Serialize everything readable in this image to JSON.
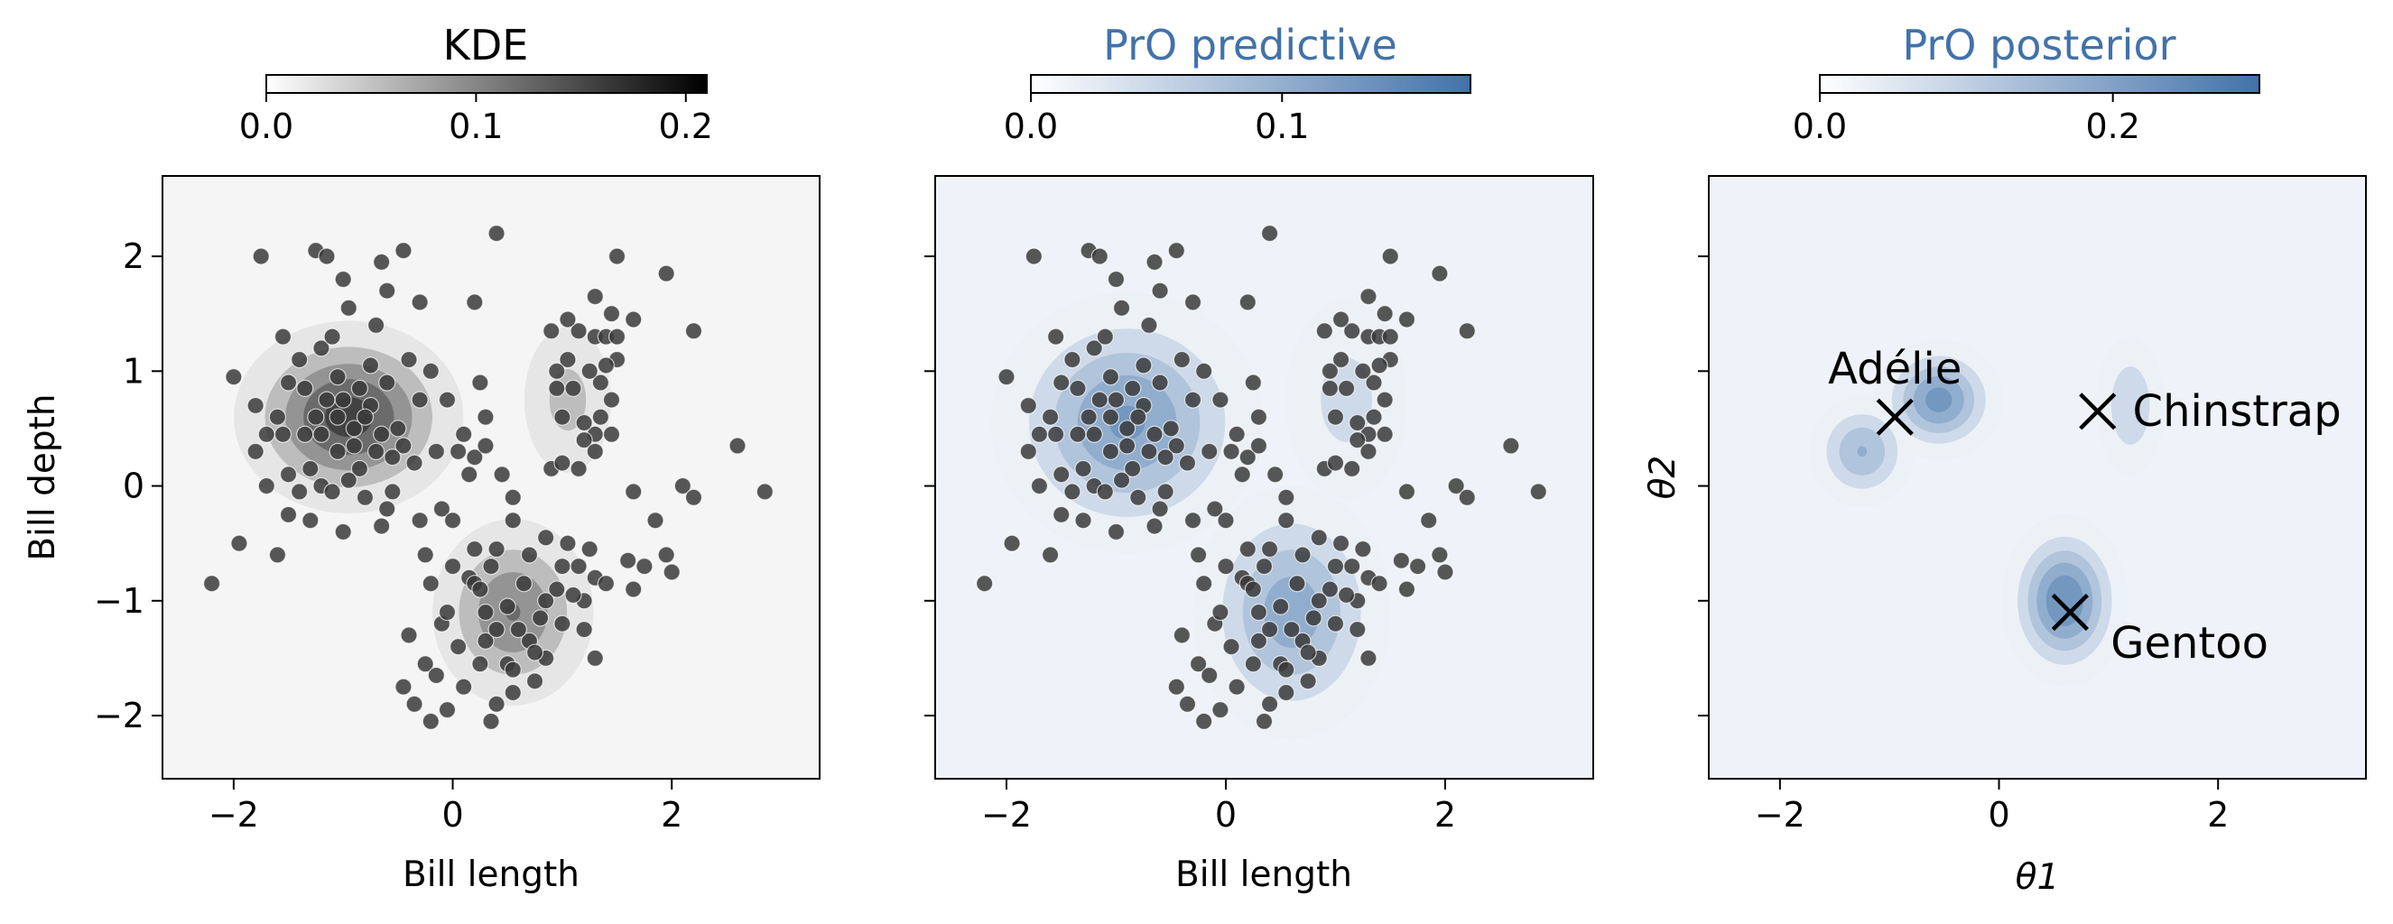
{
  "chart_data": [
    {
      "type": "scatter",
      "panel": "kde",
      "title": "KDE",
      "title_color": "#000000",
      "colormap": [
        "#ffffff",
        "#000000"
      ],
      "background": "#f5f5f5",
      "xlabel": "Bill length",
      "ylabel": "Bill depth",
      "xlim": [
        -2.65,
        3.35
      ],
      "ylim": [
        -2.55,
        2.7
      ],
      "xticks": [
        -2,
        0,
        2
      ],
      "xtick_labels": [
        "−2",
        "0",
        "2"
      ],
      "yticks": [
        -2,
        -1,
        0,
        1,
        2
      ],
      "ytick_labels": [
        "−2",
        "−1",
        "0",
        "1",
        "2"
      ],
      "colorbar": {
        "min": 0.0,
        "max": 0.21,
        "ticks": [
          0.0,
          0.1,
          0.2
        ],
        "tick_labels": [
          "0.0",
          "0.1",
          "0.2"
        ]
      },
      "shows_points": true,
      "density_modes": [
        {
          "x": -0.95,
          "y": 0.6,
          "sx": 0.5,
          "sy": 0.4,
          "w": 0.9
        },
        {
          "x": 0.55,
          "y": -1.1,
          "sx": 0.38,
          "sy": 0.42,
          "w": 0.65
        },
        {
          "x": 1.05,
          "y": 0.75,
          "sx": 0.25,
          "sy": 0.4,
          "w": 0.35
        }
      ]
    },
    {
      "type": "scatter",
      "panel": "predictive",
      "title": "PrO predictive",
      "title_color": "#4272a9",
      "colormap": [
        "#ffffff",
        "#4272a9"
      ],
      "background": "#eff3f9",
      "xlabel": "Bill length",
      "ylabel": "",
      "xlim": [
        -2.65,
        3.35
      ],
      "ylim": [
        -2.55,
        2.7
      ],
      "xticks": [
        -2,
        0,
        2
      ],
      "xtick_labels": [
        "−2",
        "0",
        "2"
      ],
      "yticks": [
        -2,
        -1,
        0,
        1,
        2
      ],
      "ytick_labels": [],
      "colorbar": {
        "min": 0.0,
        "max": 0.175,
        "ticks": [
          0.0,
          0.1
        ],
        "tick_labels": [
          "0.0",
          "0.1"
        ]
      },
      "shows_points": true,
      "density_modes": [
        {
          "x": -0.9,
          "y": 0.55,
          "sx": 0.6,
          "sy": 0.55,
          "w": 0.85
        },
        {
          "x": 0.6,
          "y": -1.1,
          "sx": 0.45,
          "sy": 0.55,
          "w": 0.75
        },
        {
          "x": 1.1,
          "y": 0.75,
          "sx": 0.35,
          "sy": 0.55,
          "w": 0.35
        }
      ]
    },
    {
      "type": "heatmap",
      "panel": "posterior",
      "title": "PrO posterior",
      "title_color": "#4272a9",
      "colormap": [
        "#ffffff",
        "#4272a9"
      ],
      "background": "#eff3f9",
      "xlabel": "θ1",
      "ylabel": "θ2",
      "xlim": [
        -2.65,
        3.35
      ],
      "ylim": [
        -2.55,
        2.7
      ],
      "xticks": [
        -2,
        0,
        2
      ],
      "xtick_labels": [
        "−2",
        "0",
        "2"
      ],
      "yticks": [
        -2,
        -1,
        0,
        1,
        2
      ],
      "ytick_labels": [],
      "colorbar": {
        "min": 0.0,
        "max": 0.3,
        "ticks": [
          0.0,
          0.2
        ],
        "tick_labels": [
          "0.0",
          "0.2"
        ]
      },
      "shows_points": false,
      "density_modes": [
        {
          "x": -0.55,
          "y": 0.75,
          "sx": 0.28,
          "sy": 0.25,
          "w": 0.9
        },
        {
          "x": -1.25,
          "y": 0.3,
          "sx": 0.25,
          "sy": 0.25,
          "w": 0.65
        },
        {
          "x": 0.6,
          "y": -1.0,
          "sx": 0.27,
          "sy": 0.35,
          "w": 1.0
        },
        {
          "x": 1.2,
          "y": 0.7,
          "sx": 0.18,
          "sy": 0.35,
          "w": 0.45
        }
      ],
      "annotations": [
        {
          "label": "Adélie",
          "x": -0.95,
          "y": 0.6,
          "label_x": -0.95,
          "label_y": 1.02,
          "anchor": "middle"
        },
        {
          "label": "Chinstrap",
          "x": 0.9,
          "y": 0.65,
          "label_x": 1.22,
          "label_y": 0.65,
          "anchor": "start"
        },
        {
          "label": "Gentoo",
          "x": 0.65,
          "y": -1.1,
          "label_x": 1.02,
          "label_y": -1.37,
          "anchor": "start"
        }
      ]
    }
  ],
  "points": [
    [
      -1.75,
      2.0
    ],
    [
      -1.25,
      2.05
    ],
    [
      -1.15,
      2.0
    ],
    [
      -1.0,
      1.8
    ],
    [
      -0.65,
      1.95
    ],
    [
      -0.45,
      2.05
    ],
    [
      0.4,
      2.2
    ],
    [
      -0.6,
      1.7
    ],
    [
      -0.3,
      1.6
    ],
    [
      -0.7,
      1.4
    ],
    [
      -1.4,
      1.1
    ],
    [
      -1.2,
      1.2
    ],
    [
      -1.8,
      0.7
    ],
    [
      -2.0,
      0.95
    ],
    [
      -1.5,
      0.9
    ],
    [
      -1.55,
      1.3
    ],
    [
      -1.1,
      1.3
    ],
    [
      -0.95,
      1.55
    ],
    [
      -0.4,
      1.1
    ],
    [
      -0.2,
      1.0
    ],
    [
      -0.05,
      0.75
    ],
    [
      0.25,
      0.9
    ],
    [
      0.3,
      0.6
    ],
    [
      0.1,
      0.45
    ],
    [
      0.2,
      1.6
    ],
    [
      0.05,
      0.3
    ],
    [
      -0.1,
      -0.2
    ],
    [
      -0.3,
      -0.3
    ],
    [
      -1.8,
      0.3
    ],
    [
      -1.7,
      0.0
    ],
    [
      -1.5,
      -0.25
    ],
    [
      -1.6,
      -0.6
    ],
    [
      -1.3,
      -0.3
    ],
    [
      -1.2,
      0.0
    ],
    [
      -0.8,
      -0.1
    ],
    [
      -0.55,
      -0.05
    ],
    [
      -0.65,
      -0.35
    ],
    [
      -1.0,
      -0.4
    ],
    [
      -1.95,
      -0.5
    ],
    [
      -2.2,
      -0.85
    ],
    [
      -0.5,
      0.5
    ],
    [
      -0.35,
      0.2
    ],
    [
      -0.3,
      0.75
    ],
    [
      -0.75,
      1.05
    ],
    [
      -1.05,
      0.95
    ],
    [
      -1.25,
      0.6
    ],
    [
      -1.05,
      0.3
    ],
    [
      -0.85,
      0.15
    ],
    [
      -1.6,
      0.6
    ],
    [
      -1.55,
      0.45
    ],
    [
      -1.1,
      -0.05
    ],
    [
      -1.3,
      0.15
    ],
    [
      -0.6,
      0.9
    ],
    [
      -0.45,
      0.35
    ],
    [
      0.2,
      0.25
    ],
    [
      0.15,
      0.1
    ],
    [
      0.3,
      0.35
    ],
    [
      0.45,
      0.1
    ],
    [
      0.55,
      -0.1
    ],
    [
      0.55,
      -0.3
    ],
    [
      0.4,
      -0.55
    ],
    [
      0.2,
      -0.55
    ],
    [
      0.15,
      -0.8
    ],
    [
      0.0,
      -0.7
    ],
    [
      -0.2,
      -0.85
    ],
    [
      -0.4,
      -1.3
    ],
    [
      -0.1,
      -1.2
    ],
    [
      -0.25,
      -1.55
    ],
    [
      -0.45,
      -1.75
    ],
    [
      -0.35,
      -1.9
    ],
    [
      -0.15,
      -1.65
    ],
    [
      -0.2,
      -2.05
    ],
    [
      -0.05,
      -1.95
    ],
    [
      0.1,
      -1.75
    ],
    [
      0.25,
      -1.55
    ],
    [
      0.4,
      -1.9
    ],
    [
      0.35,
      -2.05
    ],
    [
      0.55,
      -1.8
    ],
    [
      0.75,
      -1.7
    ],
    [
      0.85,
      -1.5
    ],
    [
      0.7,
      -1.35
    ],
    [
      0.5,
      -1.55
    ],
    [
      0.3,
      -1.35
    ],
    [
      0.05,
      -1.4
    ],
    [
      -0.05,
      -1.1
    ],
    [
      0.3,
      -1.1
    ],
    [
      0.5,
      -1.05
    ],
    [
      0.2,
      -0.85
    ],
    [
      0.65,
      -0.85
    ],
    [
      0.8,
      -1.15
    ],
    [
      1.0,
      -1.2
    ],
    [
      1.2,
      -1.0
    ],
    [
      1.3,
      -0.8
    ],
    [
      1.15,
      -0.7
    ],
    [
      1.05,
      -0.5
    ],
    [
      0.85,
      -0.45
    ],
    [
      0.7,
      -0.6
    ],
    [
      1.25,
      -0.55
    ],
    [
      1.4,
      -0.85
    ],
    [
      1.6,
      -0.65
    ],
    [
      1.75,
      -0.7
    ],
    [
      1.95,
      -0.6
    ],
    [
      1.3,
      -1.5
    ],
    [
      1.2,
      -1.25
    ],
    [
      0.95,
      -0.9
    ],
    [
      0.6,
      -1.25
    ],
    [
      0.4,
      -1.25
    ],
    [
      0.85,
      -1.0
    ],
    [
      1.0,
      -0.7
    ],
    [
      1.1,
      -0.95
    ],
    [
      0.75,
      -1.45
    ],
    [
      0.55,
      -1.6
    ],
    [
      0.9,
      0.15
    ],
    [
      1.0,
      0.2
    ],
    [
      1.0,
      0.6
    ],
    [
      0.95,
      0.85
    ],
    [
      1.05,
      1.1
    ],
    [
      1.15,
      1.35
    ],
    [
      1.3,
      1.3
    ],
    [
      1.4,
      1.3
    ],
    [
      1.5,
      1.3
    ],
    [
      1.65,
      1.45
    ],
    [
      1.45,
      1.5
    ],
    [
      1.3,
      1.65
    ],
    [
      1.05,
      1.45
    ],
    [
      0.9,
      1.35
    ],
    [
      1.5,
      1.1
    ],
    [
      1.4,
      1.05
    ],
    [
      1.35,
      0.9
    ],
    [
      1.45,
      0.75
    ],
    [
      1.35,
      0.6
    ],
    [
      1.3,
      0.45
    ],
    [
      1.2,
      0.4
    ],
    [
      1.1,
      0.85
    ],
    [
      0.95,
      1.0
    ],
    [
      1.25,
      1.0
    ],
    [
      1.45,
      0.45
    ],
    [
      1.5,
      2.0
    ],
    [
      1.95,
      1.85
    ],
    [
      2.2,
      1.35
    ],
    [
      1.2,
      0.55
    ],
    [
      1.3,
      0.3
    ],
    [
      1.15,
      0.15
    ],
    [
      2.1,
      0.0
    ],
    [
      2.2,
      -0.1
    ],
    [
      2.6,
      0.35
    ],
    [
      2.85,
      -0.05
    ],
    [
      1.85,
      -0.3
    ],
    [
      1.65,
      -0.05
    ],
    [
      0.25,
      -0.9
    ],
    [
      0.35,
      -0.7
    ],
    [
      1.65,
      -0.9
    ],
    [
      2.0,
      -0.75
    ],
    [
      -0.25,
      -0.6
    ],
    [
      0.0,
      -0.3
    ],
    [
      -1.5,
      0.1
    ],
    [
      -1.4,
      -0.05
    ],
    [
      -0.9,
      0.5
    ],
    [
      -0.75,
      0.7
    ],
    [
      -1.15,
      0.75
    ],
    [
      -1.35,
      0.85
    ],
    [
      -0.85,
      0.85
    ],
    [
      -0.65,
      0.45
    ],
    [
      -0.55,
      0.25
    ],
    [
      -0.95,
      0.05
    ],
    [
      -1.35,
      0.45
    ],
    [
      -1.7,
      0.45
    ],
    [
      -0.6,
      -0.2
    ],
    [
      -0.15,
      0.3
    ],
    [
      -1.05,
      0.6
    ],
    [
      -0.9,
      0.35
    ],
    [
      -1.2,
      0.45
    ],
    [
      -0.8,
      0.6
    ],
    [
      -1.0,
      0.75
    ],
    [
      -0.7,
      0.3
    ]
  ]
}
